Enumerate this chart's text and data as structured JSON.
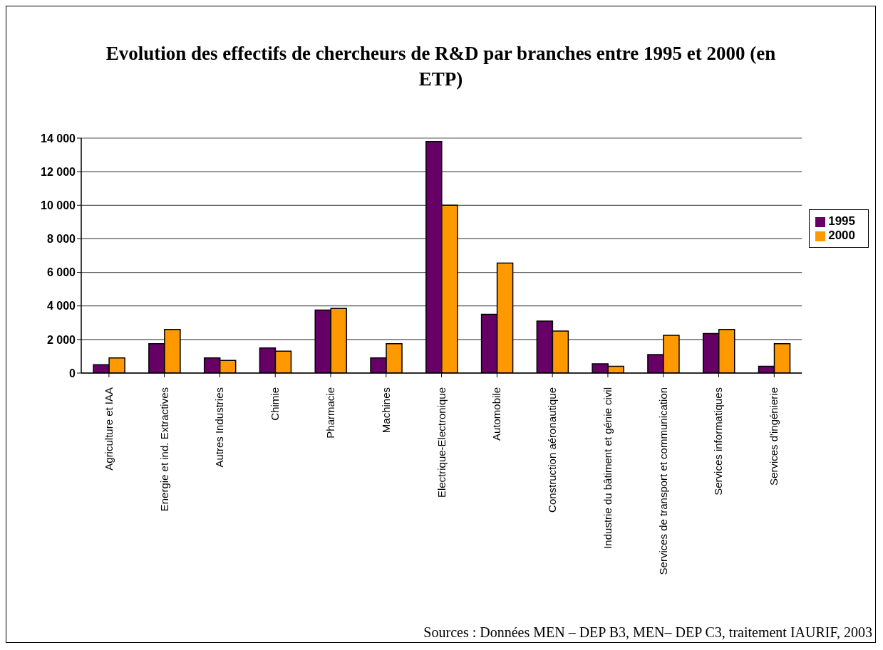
{
  "chart_data": {
    "type": "bar",
    "title": "Evolution des effectifs de chercheurs de R&D par branches entre 1995 et 2000 (en ETP)",
    "categories": [
      "Agriculture et IAA",
      "Energie et ind. Extractives",
      "Autres Industries",
      "Chimie",
      "Pharmacie",
      "Machines",
      "Electrique-Electronique",
      "Automobile",
      "Construction aéronautique",
      "Industrie du bâtiment et génie civil",
      "Services de transport et communication",
      "Services informatiques",
      "Services d'ingénierie"
    ],
    "series": [
      {
        "name": "1995",
        "color": "#660066",
        "values": [
          500,
          1750,
          900,
          1500,
          3750,
          900,
          13800,
          3500,
          3100,
          550,
          1100,
          2350,
          400
        ]
      },
      {
        "name": "2000",
        "color": "#ff9900",
        "values": [
          900,
          2600,
          750,
          1300,
          3850,
          1750,
          10000,
          6550,
          2500,
          400,
          2250,
          2600,
          1750
        ]
      }
    ],
    "ylim": [
      0,
      14000
    ],
    "yticks": [
      0,
      {
        "value": 2000,
        "label": "2 000"
      },
      {
        "value": 4000,
        "label": "4 000"
      },
      {
        "value": 6000,
        "label": "6 000"
      },
      {
        "value": 8000,
        "label": "8 000"
      },
      {
        "value": 10000,
        "label": "10 000"
      },
      {
        "value": 12000,
        "label": "12 000"
      },
      {
        "value": 14000,
        "label": "14 000"
      }
    ],
    "grid": "y",
    "legend": "right",
    "annotations": [
      "Sources : Données MEN – DEP B3, MEN– DEP C3, traitement IAURIF, 2003"
    ]
  }
}
